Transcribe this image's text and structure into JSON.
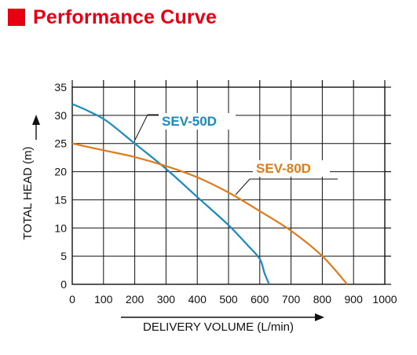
{
  "header": {
    "title": "Performance Curve",
    "accent": "#e60012"
  },
  "chart_data": {
    "type": "line",
    "title": "Performance Curve",
    "xlabel": "DELIVERY VOLUME (L/min)",
    "ylabel": "TOTAL HEAD (m)",
    "xlim": [
      0,
      1000
    ],
    "ylim": [
      0,
      35
    ],
    "xticks": [
      0,
      100,
      200,
      300,
      400,
      500,
      600,
      700,
      800,
      900,
      1000
    ],
    "yticks": [
      0,
      5,
      10,
      15,
      20,
      25,
      30,
      35
    ],
    "grid": true,
    "series": [
      {
        "name": "SEV-50D",
        "color": "#1a8ac0",
        "x": [
          0,
          50,
          110,
          200,
          300,
          400,
          500,
          560,
          600,
          615,
          630
        ],
        "y": [
          32,
          30.8,
          29,
          25,
          20.5,
          15.5,
          10.5,
          7,
          4.5,
          2,
          0
        ]
      },
      {
        "name": "SEV-80D",
        "color": "#e07b1a",
        "x": [
          0,
          100,
          200,
          300,
          400,
          500,
          600,
          700,
          800,
          880
        ],
        "y": [
          25,
          23.8,
          22.6,
          21,
          19,
          16.3,
          13,
          9.5,
          5,
          0
        ]
      }
    ]
  }
}
